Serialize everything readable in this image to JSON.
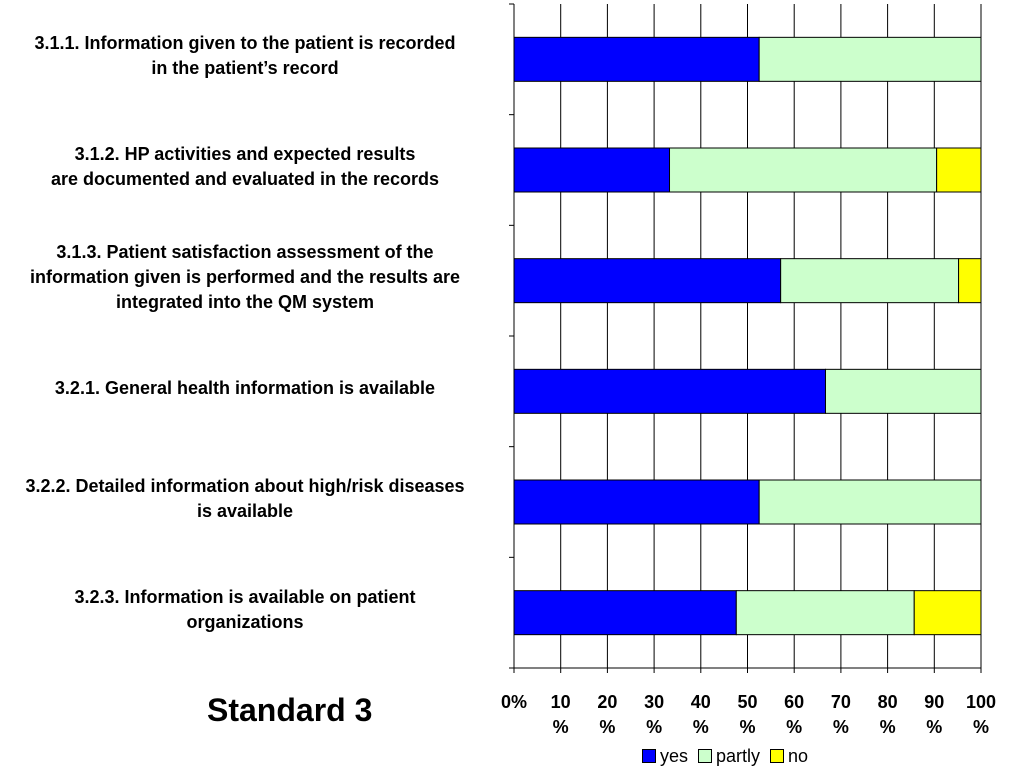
{
  "chart_data": {
    "type": "bar",
    "orientation": "horizontal",
    "stacked": "percent",
    "title": "Standard 3",
    "categories": [
      [
        "3.1.1. Information given to the patient is recorded",
        "in the patient’s record"
      ],
      [
        "3.1.2. HP activities and expected results",
        "are documented and evaluated in the records"
      ],
      [
        "3.1.3. Patient satisfaction assessment of the",
        "information given is performed and the results are",
        "integrated into the QM system"
      ],
      [
        "3.2.1. General health information is available"
      ],
      [
        "3.2.2. Detailed information about high/risk diseases",
        "is available"
      ],
      [
        "3.2.3. Information is available on patient",
        "organizations"
      ]
    ],
    "series": [
      {
        "name": "yes",
        "color": "#0000ff",
        "values": [
          52.5,
          33.3,
          57.1,
          66.7,
          52.5,
          47.6
        ]
      },
      {
        "name": "partly",
        "color": "#ccffcc",
        "values": [
          47.5,
          57.2,
          38.1,
          33.3,
          47.5,
          38.1
        ]
      },
      {
        "name": "no",
        "color": "#ffff00",
        "values": [
          0.0,
          9.5,
          4.8,
          0.0,
          0.0,
          14.3
        ]
      }
    ],
    "xlim": [
      0,
      100
    ],
    "x_ticks": [
      [
        "0%"
      ],
      [
        "10",
        "%"
      ],
      [
        "20",
        "%"
      ],
      [
        "30",
        "%"
      ],
      [
        "40",
        "%"
      ],
      [
        "50",
        "%"
      ],
      [
        "60",
        "%"
      ],
      [
        "70",
        "%"
      ],
      [
        "80",
        "%"
      ],
      [
        "90",
        "%"
      ],
      [
        "100",
        "%"
      ]
    ],
    "grid": true,
    "legend_position": "bottom"
  }
}
